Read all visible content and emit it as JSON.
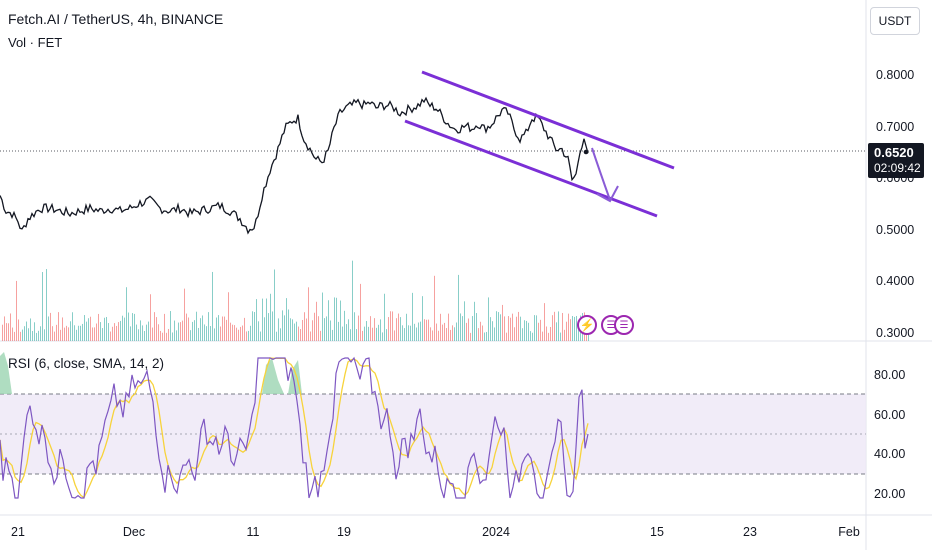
{
  "header": {
    "title": "Fetch.AI / TetherUS, 4h, BINANCE",
    "volume_label": "Vol · FET"
  },
  "rsi": {
    "label": "RSI (6, close, SMA, 14, 2)"
  },
  "currency_button": "USDT",
  "last_price": {
    "value": "0.6520",
    "countdown": "02:09:42"
  },
  "colors": {
    "price_line": "#131722",
    "channel": "#7b2fd6",
    "rsi_line": "#7e57c2",
    "rsi_ma": "#f7d33b",
    "rsi_band": "#ede7f6",
    "vol_up": "#26a69a",
    "vol_down": "#ef5350"
  },
  "icons": [
    "lightning-icon",
    "us-flag-icon",
    "us-flag-icon"
  ],
  "chart_data": [
    {
      "type": "line",
      "name": "price",
      "y_ticks": [
        "0.8000",
        "0.7000",
        "0.6000",
        "0.5000",
        "0.4000",
        "0.3000"
      ],
      "x_ticks": [
        "21",
        "Dec",
        "11",
        "19",
        "2024",
        "15",
        "23",
        "Feb"
      ],
      "keypoints": [
        [
          0,
          0.57
        ],
        [
          6,
          0.54
        ],
        [
          12,
          0.535
        ],
        [
          18,
          0.52
        ],
        [
          22,
          0.5
        ],
        [
          28,
          0.525
        ],
        [
          34,
          0.535
        ],
        [
          40,
          0.545
        ],
        [
          50,
          0.545
        ],
        [
          60,
          0.54
        ],
        [
          70,
          0.535
        ],
        [
          80,
          0.54
        ],
        [
          90,
          0.545
        ],
        [
          100,
          0.54
        ],
        [
          110,
          0.545
        ],
        [
          120,
          0.54
        ],
        [
          130,
          0.545
        ],
        [
          140,
          0.555
        ],
        [
          150,
          0.56
        ],
        [
          160,
          0.545
        ],
        [
          170,
          0.54
        ],
        [
          180,
          0.545
        ],
        [
          190,
          0.535
        ],
        [
          200,
          0.54
        ],
        [
          210,
          0.545
        ],
        [
          220,
          0.55
        ],
        [
          230,
          0.54
        ],
        [
          240,
          0.525
        ],
        [
          248,
          0.505
        ],
        [
          255,
          0.51
        ],
        [
          262,
          0.57
        ],
        [
          270,
          0.62
        ],
        [
          278,
          0.66
        ],
        [
          285,
          0.7
        ],
        [
          292,
          0.715
        ],
        [
          298,
          0.72
        ],
        [
          304,
          0.68
        ],
        [
          310,
          0.66
        ],
        [
          316,
          0.64
        ],
        [
          322,
          0.635
        ],
        [
          328,
          0.655
        ],
        [
          334,
          0.7
        ],
        [
          340,
          0.73
        ],
        [
          346,
          0.74
        ],
        [
          352,
          0.745
        ],
        [
          358,
          0.75
        ],
        [
          364,
          0.745
        ],
        [
          370,
          0.75
        ],
        [
          376,
          0.74
        ],
        [
          382,
          0.745
        ],
        [
          388,
          0.745
        ],
        [
          394,
          0.74
        ],
        [
          400,
          0.73
        ],
        [
          406,
          0.735
        ],
        [
          412,
          0.74
        ],
        [
          418,
          0.745
        ],
        [
          424,
          0.755
        ],
        [
          430,
          0.745
        ],
        [
          436,
          0.74
        ],
        [
          442,
          0.725
        ],
        [
          448,
          0.71
        ],
        [
          454,
          0.7
        ],
        [
          460,
          0.7
        ],
        [
          466,
          0.705
        ],
        [
          472,
          0.7
        ],
        [
          478,
          0.71
        ],
        [
          484,
          0.7
        ],
        [
          490,
          0.705
        ],
        [
          496,
          0.72
        ],
        [
          502,
          0.735
        ],
        [
          508,
          0.73
        ],
        [
          514,
          0.7
        ],
        [
          520,
          0.68
        ],
        [
          526,
          0.69
        ],
        [
          532,
          0.72
        ],
        [
          538,
          0.72
        ],
        [
          544,
          0.7
        ],
        [
          550,
          0.68
        ],
        [
          556,
          0.66
        ],
        [
          562,
          0.66
        ],
        [
          568,
          0.64
        ],
        [
          572,
          0.6
        ],
        [
          576,
          0.61
        ],
        [
          580,
          0.66
        ],
        [
          584,
          0.68
        ],
        [
          588,
          0.652
        ]
      ]
    },
    {
      "type": "line",
      "name": "RSI",
      "y_ticks": [
        "80.00",
        "60.00",
        "40.00",
        "20.00"
      ]
    }
  ]
}
